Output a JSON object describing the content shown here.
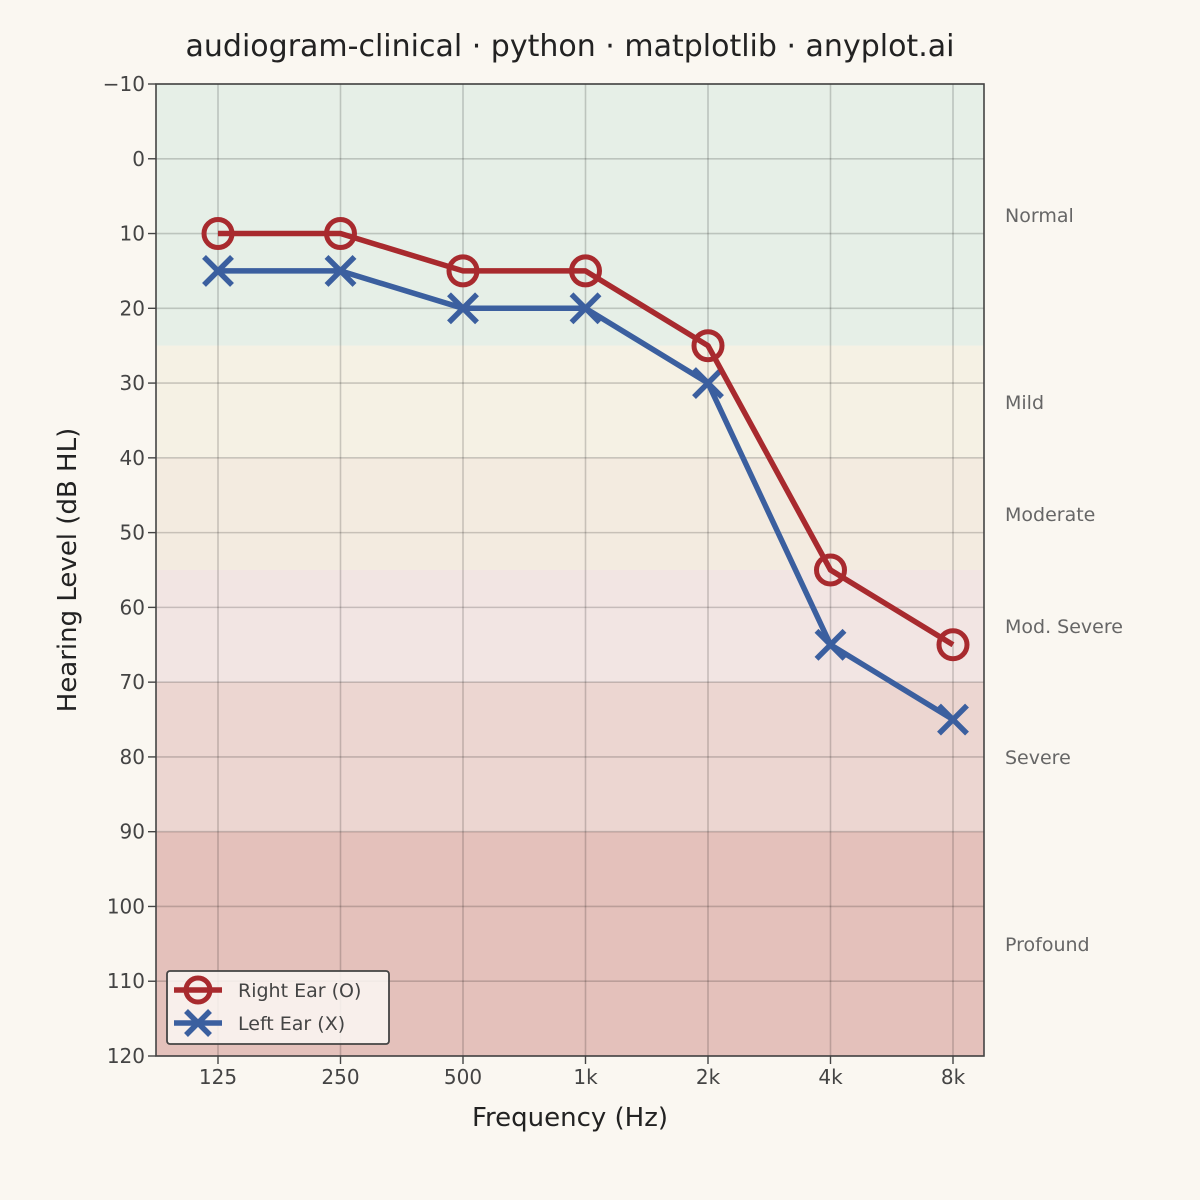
{
  "colors": {
    "background": "#faf7f1",
    "right_ear": "#a82a2e",
    "left_ear": "#3b5f9f",
    "band_normal": "#e6efe7",
    "band_mild": "#f5f1e4",
    "band_moderate": "#f3ebe0",
    "band_mod_severe": "#f2e5e3",
    "band_severe": "#ecd6d1",
    "band_profound": "#e4c1bb"
  },
  "chart_data": {
    "type": "line",
    "title": "audiogram-clinical · python · matplotlib · anyplot.ai",
    "xlabel": "Frequency (Hz)",
    "ylabel": "Hearing Level (dB HL)",
    "categories": [
      "125",
      "250",
      "500",
      "1k",
      "2k",
      "4k",
      "8k"
    ],
    "y_ticks": [
      -10,
      0,
      10,
      20,
      30,
      40,
      50,
      60,
      70,
      80,
      90,
      100,
      110,
      120
    ],
    "y_tick_labels": [
      "−10",
      "0",
      "10",
      "20",
      "30",
      "40",
      "50",
      "60",
      "70",
      "80",
      "90",
      "100",
      "110",
      "120"
    ],
    "ylim": [
      -10,
      120
    ],
    "y_inverted": true,
    "grid": true,
    "legend_position": "bottom-left",
    "series": [
      {
        "name": "Right Ear (O)",
        "marker": "circle",
        "color": "#a82a2e",
        "values": [
          10,
          10,
          15,
          15,
          25,
          55,
          65
        ]
      },
      {
        "name": "Left Ear (X)",
        "marker": "x",
        "color": "#3b5f9f",
        "values": [
          15,
          15,
          20,
          20,
          30,
          65,
          75
        ]
      }
    ],
    "bands": [
      {
        "label": "Normal",
        "from": -10,
        "to": 25,
        "color": "#e6efe7"
      },
      {
        "label": "Mild",
        "from": 25,
        "to": 40,
        "color": "#f5f1e4"
      },
      {
        "label": "Moderate",
        "from": 40,
        "to": 55,
        "color": "#f3ebe0"
      },
      {
        "label": "Mod. Severe",
        "from": 55,
        "to": 70,
        "color": "#f2e5e3"
      },
      {
        "label": "Severe",
        "from": 70,
        "to": 90,
        "color": "#ecd6d1"
      },
      {
        "label": "Profound",
        "from": 90,
        "to": 120,
        "color": "#e4c1bb"
      }
    ]
  }
}
